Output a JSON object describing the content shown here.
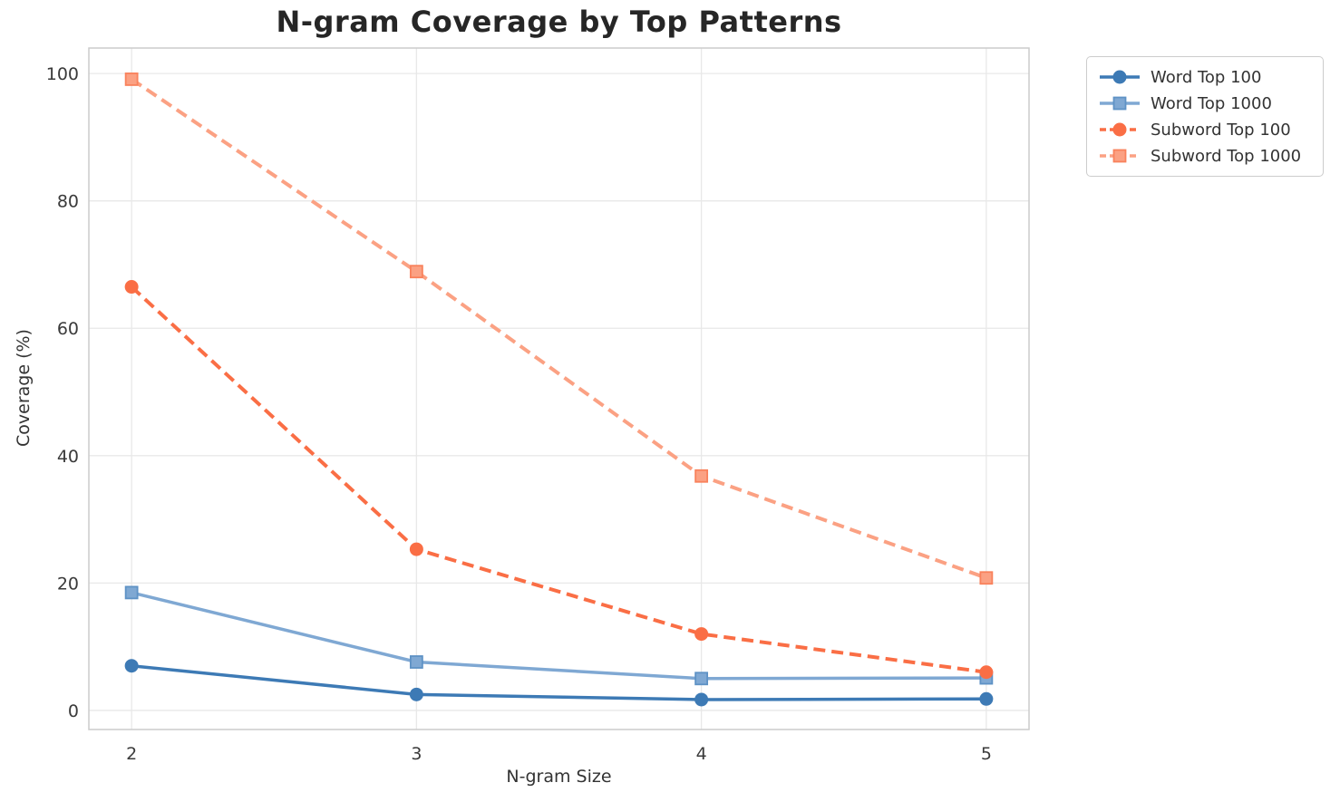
{
  "chart_data": {
    "type": "line",
    "title": "N-gram Coverage by Top Patterns",
    "xlabel": "N-gram Size",
    "ylabel": "Coverage (%)",
    "x": [
      2,
      3,
      4,
      5
    ],
    "xticks": [
      "2",
      "3",
      "4",
      "5"
    ],
    "yticks": [
      0,
      20,
      40,
      60,
      80,
      100
    ],
    "xlim": [
      1.85,
      5.15
    ],
    "ylim": [
      -3,
      104
    ],
    "grid": true,
    "legend_position": "outside-top-right",
    "series": [
      {
        "name": "Word Top 100",
        "values": [
          7.0,
          2.5,
          1.7,
          1.8
        ],
        "color": "#3d7ab5",
        "line_style": "solid",
        "marker": "circle",
        "marker_edge": "#3d7ab5"
      },
      {
        "name": "Word Top 1000",
        "values": [
          18.5,
          7.6,
          5.0,
          5.1
        ],
        "color": "#7fa8d3",
        "line_style": "solid",
        "marker": "square",
        "marker_edge": "#5e92c5"
      },
      {
        "name": "Subword Top 100",
        "values": [
          66.5,
          25.3,
          12.0,
          6.0
        ],
        "color": "#fa6e45",
        "line_style": "dashed",
        "marker": "circle",
        "marker_edge": "#fa6e45"
      },
      {
        "name": "Subword Top 1000",
        "values": [
          99.1,
          68.9,
          36.8,
          20.8
        ],
        "color": "#fba183",
        "line_style": "dashed",
        "marker": "square",
        "marker_edge": "#f9825c"
      }
    ],
    "colors": {
      "grid": "#e8e8e8",
      "spine": "#cccccc",
      "title_text": "#262626",
      "tick_text": "#3a3a3a"
    }
  }
}
